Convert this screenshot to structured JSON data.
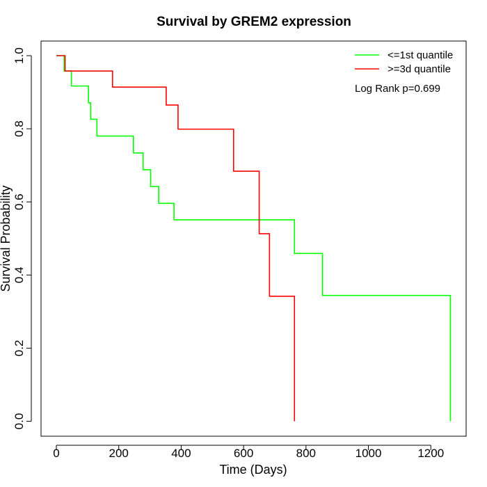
{
  "chart_data": {
    "type": "line",
    "title": "Survival by GREM2 expression",
    "xlabel": "Time (Days)",
    "ylabel": "Survival Probability",
    "xlim": [
      0,
      1265
    ],
    "ylim": [
      0,
      1.0
    ],
    "x_ticks": [
      0,
      200,
      400,
      600,
      800,
      1000,
      1200
    ],
    "y_ticks": [
      0.0,
      0.2,
      0.4,
      0.6,
      0.8,
      1.0
    ],
    "x_tick_labels": [
      "0",
      "200",
      "400",
      "600",
      "800",
      "1000",
      "1200"
    ],
    "y_tick_labels": [
      "0.0",
      "0.2",
      "0.4",
      "0.6",
      "0.8",
      "1.0"
    ],
    "grid": false,
    "legend_position": "top-right",
    "annotation": "Log Rank p=0.699",
    "series": [
      {
        "name": "<=1st quantile",
        "color": "#00ff00",
        "step": true,
        "x": [
          0,
          25,
          48,
          103,
          110,
          130,
          247,
          278,
          302,
          328,
          377,
          763,
          853,
          1263,
          1263
        ],
        "y": [
          1.0,
          0.958,
          0.917,
          0.871,
          0.826,
          0.78,
          0.734,
          0.688,
          0.642,
          0.596,
          0.551,
          0.459,
          0.344,
          0.344,
          0.0
        ]
      },
      {
        "name": ">=3d quantile",
        "color": "#ff0000",
        "step": true,
        "x": [
          0,
          28,
          180,
          352,
          390,
          568,
          650,
          683,
          763,
          763
        ],
        "y": [
          1.0,
          0.958,
          0.914,
          0.865,
          0.799,
          0.684,
          0.513,
          0.342,
          0.342,
          0.0
        ]
      }
    ]
  }
}
